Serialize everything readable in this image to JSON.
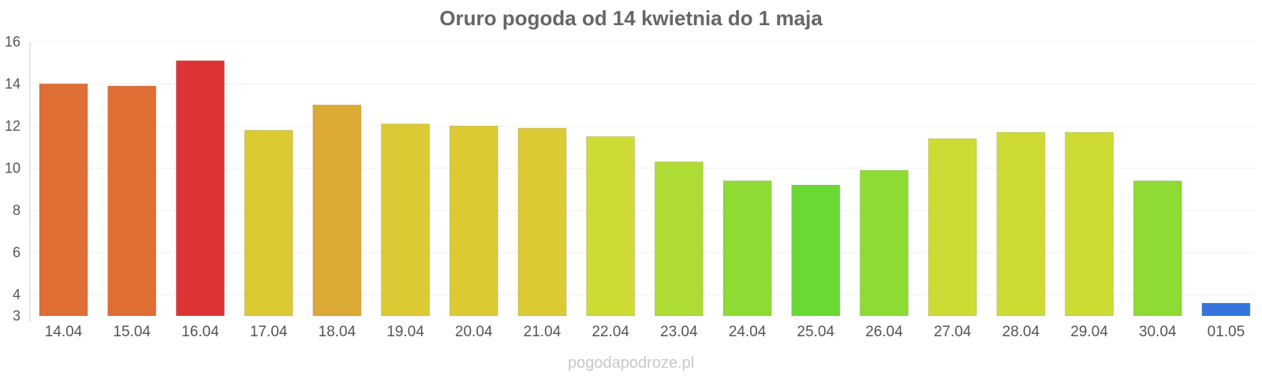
{
  "chart_data": {
    "type": "bar",
    "title": "Oruro pogoda od 14 kwietnia do 1 maja",
    "xlabel": "",
    "ylabel": "",
    "ylim": [
      3,
      16
    ],
    "yticks": [
      3,
      4,
      6,
      8,
      10,
      12,
      14,
      16
    ],
    "grid": true,
    "categories": [
      "14.04",
      "15.04",
      "16.04",
      "17.04",
      "18.04",
      "19.04",
      "20.04",
      "21.04",
      "22.04",
      "23.04",
      "24.04",
      "25.04",
      "26.04",
      "27.04",
      "28.04",
      "29.04",
      "30.04",
      "01.05"
    ],
    "values": [
      14.0,
      13.9,
      15.1,
      11.8,
      13.0,
      12.1,
      12.0,
      11.9,
      11.5,
      10.3,
      9.4,
      9.2,
      9.9,
      11.4,
      11.7,
      11.7,
      9.4,
      3.6
    ],
    "colors": [
      "#de6e34",
      "#de6e34",
      "#dc3434",
      "#dbca34",
      "#dca934",
      "#dbca34",
      "#dbca34",
      "#dbca34",
      "#cedb34",
      "#aedb34",
      "#8ddb34",
      "#6ad934",
      "#8ddb34",
      "#cedb34",
      "#cedb34",
      "#cedb34",
      "#8ddb34",
      "#3474dc"
    ]
  },
  "watermark": "pogodapodroze.pl"
}
